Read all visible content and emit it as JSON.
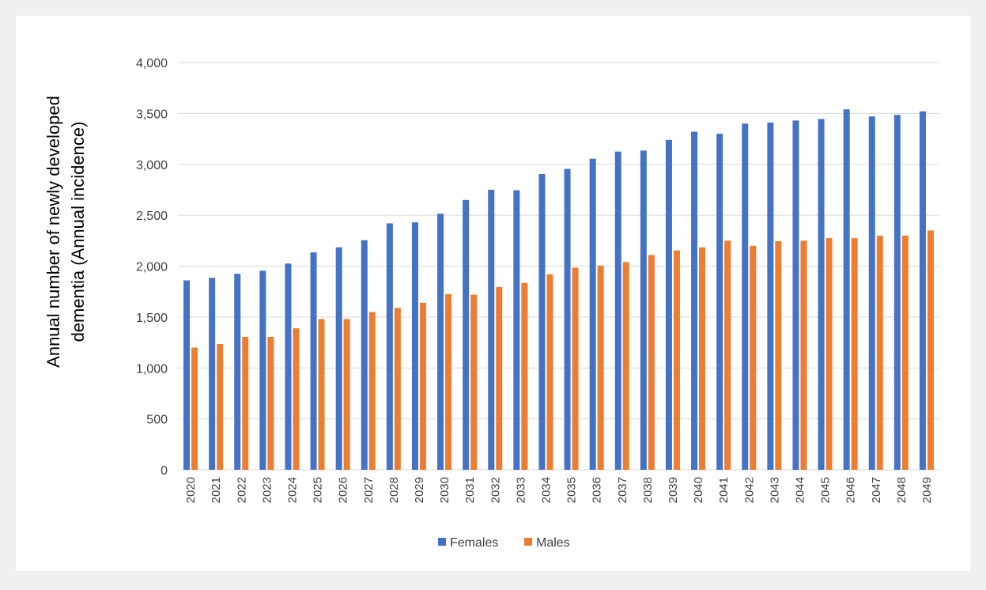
{
  "chart_data": {
    "type": "bar",
    "title": "",
    "xlabel": "",
    "ylabel_lines": [
      "Annual number of newly developed",
      "dementia (Annual incidence)"
    ],
    "ylim": [
      0,
      4000
    ],
    "yticks": [
      0,
      500,
      1000,
      1500,
      2000,
      2500,
      3000,
      3500,
      4000
    ],
    "ytick_labels": [
      "0",
      "500",
      "1,000",
      "1,500",
      "2,000",
      "2,500",
      "3,000",
      "3,500",
      "4,000"
    ],
    "grid": true,
    "legend_position": "bottom-center",
    "categories": [
      "2020",
      "2021",
      "2022",
      "2023",
      "2024",
      "2025",
      "2026",
      "2027",
      "2028",
      "2029",
      "2030",
      "2031",
      "2032",
      "2033",
      "2034",
      "2035",
      "2036",
      "2037",
      "2038",
      "2039",
      "2040",
      "2041",
      "2042",
      "2043",
      "2044",
      "2045",
      "2046",
      "2047",
      "2048",
      "2049"
    ],
    "series": [
      {
        "name": "Females",
        "color": "#4472c4",
        "values": [
          1860,
          1885,
          1925,
          1955,
          2025,
          2135,
          2185,
          2255,
          2420,
          2430,
          2515,
          2650,
          2750,
          2745,
          2905,
          2955,
          3055,
          3125,
          3135,
          3240,
          3320,
          3300,
          3400,
          3410,
          3430,
          3445,
          3540,
          3470,
          3485,
          3520
        ]
      },
      {
        "name": "Males",
        "color": "#ed7d31",
        "values": [
          1200,
          1235,
          1305,
          1305,
          1390,
          1480,
          1480,
          1550,
          1590,
          1640,
          1725,
          1720,
          1795,
          1835,
          1920,
          1985,
          2005,
          2040,
          2110,
          2155,
          2185,
          2250,
          2200,
          2245,
          2250,
          2275,
          2275,
          2300,
          2300,
          2350
        ]
      }
    ]
  }
}
